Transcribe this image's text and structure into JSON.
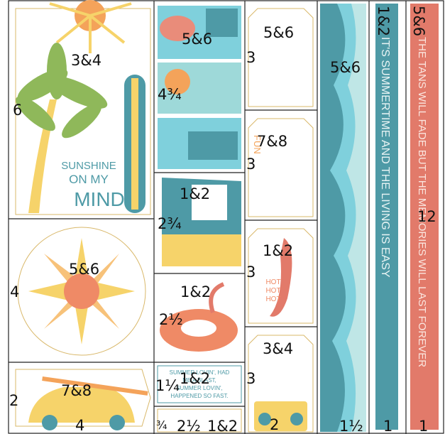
{
  "labels": [
    "3&4",
    "6",
    "5&6",
    "4",
    "7&8",
    "2",
    "4",
    "5&6",
    "4¾",
    "1&2",
    "2¾",
    "1&2",
    "2½",
    "1&2",
    "1¼",
    "¾",
    "2½",
    "1&2",
    "5&6",
    "3",
    "7&8",
    "3",
    "1&2",
    "3",
    "3&4",
    "3",
    "2",
    "5&6",
    "1½",
    "1&2",
    "1",
    "5&6",
    "12",
    "1"
  ],
  "sticker_text": {
    "sunshine": [
      "SUNSHINE",
      "ON MY",
      "MIND"
    ],
    "fun": "FUN",
    "hot": [
      "HOT",
      "HOT",
      "HOT"
    ],
    "lovin": [
      "SUMMER LOVIN', HAD",
      "ME A BLAST,",
      "SUMMER LOVIN',",
      "HAPPENED SO FAST."
    ],
    "summertime": "IT'S SUMMERTIME AND THE LIVING IS EASY",
    "tans": "THE TANS WILL FADE BUT THE MEMORIES WILL LAST FOREVER"
  }
}
